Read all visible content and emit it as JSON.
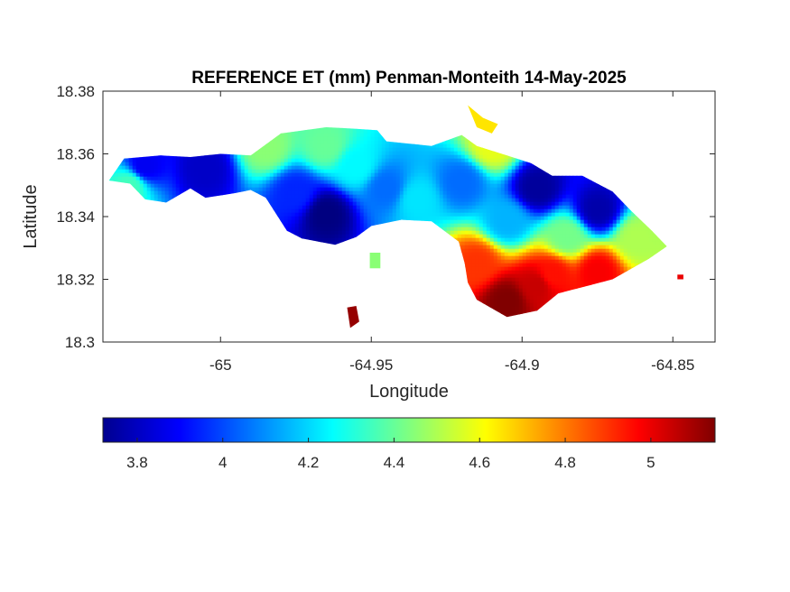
{
  "chart_data": {
    "type": "heatmap",
    "title": "REFERENCE ET (mm) Penman-Monteith 14-May-2025",
    "xlabel": "Longitude",
    "ylabel": "Latitude",
    "xlim": [
      -65.039,
      -64.836
    ],
    "ylim": [
      18.3,
      18.38
    ],
    "x_ticks": [
      -65,
      -64.95,
      -64.9,
      -64.85
    ],
    "x_tick_labels": [
      "-65",
      "-64.95",
      "-64.9",
      "-64.85"
    ],
    "y_ticks": [
      18.3,
      18.32,
      18.34,
      18.36,
      18.38
    ],
    "y_tick_labels": [
      "18.3",
      "18.32",
      "18.34",
      "18.36",
      "18.38"
    ],
    "colormap": "jet",
    "colorbar": {
      "position": "bottom",
      "range": [
        3.72,
        5.15
      ],
      "ticks": [
        3.8,
        4,
        4.2,
        4.4,
        4.6,
        4.8,
        5
      ],
      "tick_labels": [
        "3.8",
        "4",
        "4.2",
        "4.4",
        "4.6",
        "4.8",
        "5"
      ]
    },
    "grid": false,
    "region": {
      "outline": [
        [
          -65.037,
          18.3515
        ],
        [
          -65.032,
          18.3585
        ],
        [
          -65.02,
          18.3595
        ],
        [
          -65.01,
          18.359
        ],
        [
          -65.0,
          18.36
        ],
        [
          -64.99,
          18.3595
        ],
        [
          -64.98,
          18.3665
        ],
        [
          -64.965,
          18.3685
        ],
        [
          -64.955,
          18.368
        ],
        [
          -64.948,
          18.3675
        ],
        [
          -64.945,
          18.364
        ],
        [
          -64.93,
          18.3625
        ],
        [
          -64.92,
          18.366
        ],
        [
          -64.915,
          18.3625
        ],
        [
          -64.905,
          18.3595
        ],
        [
          -64.897,
          18.357
        ],
        [
          -64.89,
          18.353
        ],
        [
          -64.88,
          18.353
        ],
        [
          -64.87,
          18.348
        ],
        [
          -64.864,
          18.342
        ],
        [
          -64.857,
          18.3355
        ],
        [
          -64.852,
          18.3305
        ],
        [
          -64.858,
          18.3265
        ],
        [
          -64.87,
          18.32
        ],
        [
          -64.88,
          18.3175
        ],
        [
          -64.888,
          18.3155
        ],
        [
          -64.895,
          18.31
        ],
        [
          -64.905,
          18.308
        ],
        [
          -64.915,
          18.3135
        ],
        [
          -64.918,
          18.319
        ],
        [
          -64.919,
          18.325
        ],
        [
          -64.921,
          18.332
        ],
        [
          -64.93,
          18.3385
        ],
        [
          -64.94,
          18.339
        ],
        [
          -64.95,
          18.337
        ],
        [
          -64.955,
          18.3335
        ],
        [
          -64.962,
          18.331
        ],
        [
          -64.973,
          18.333
        ],
        [
          -64.978,
          18.3355
        ],
        [
          -64.985,
          18.346
        ],
        [
          -64.99,
          18.3485
        ],
        [
          -64.995,
          18.3475
        ],
        [
          -65.005,
          18.346
        ],
        [
          -65.01,
          18.349
        ],
        [
          -65.018,
          18.3445
        ],
        [
          -65.025,
          18.3455
        ],
        [
          -65.03,
          18.3505
        ]
      ],
      "islets": [
        {
          "outline": [
            [
              -64.918,
              18.3755
            ],
            [
              -64.913,
              18.3715
            ],
            [
              -64.908,
              18.3695
            ],
            [
              -64.91,
              18.3665
            ],
            [
              -64.915,
              18.3685
            ]
          ],
          "et": 4.65
        },
        {
          "outline": [
            [
              -64.958,
              18.311
            ],
            [
              -64.955,
              18.3115
            ],
            [
              -64.954,
              18.3065
            ],
            [
              -64.957,
              18.3045
            ]
          ],
          "et": 5.12
        },
        {
          "outline": [
            [
              -64.9505,
              18.3285
            ],
            [
              -64.947,
              18.3285
            ],
            [
              -64.947,
              18.3235
            ],
            [
              -64.9505,
              18.3235
            ]
          ],
          "et": 4.45
        },
        {
          "outline": [
            [
              -64.8485,
              18.3215
            ],
            [
              -64.8465,
              18.3215
            ],
            [
              -64.8465,
              18.32
            ],
            [
              -64.8485,
              18.32
            ]
          ],
          "et": 5.0
        }
      ]
    },
    "field": {
      "description_points": [
        {
          "lon": -65.025,
          "lat": 18.356,
          "et": 3.88
        },
        {
          "lon": -65.03,
          "lat": 18.35,
          "et": 4.35
        },
        {
          "lon": -65.005,
          "lat": 18.3555,
          "et": 3.82
        },
        {
          "lon": -64.985,
          "lat": 18.362,
          "et": 4.45
        },
        {
          "lon": -64.965,
          "lat": 18.3625,
          "et": 4.4
        },
        {
          "lon": -64.955,
          "lat": 18.356,
          "et": 4.25
        },
        {
          "lon": -64.965,
          "lat": 18.341,
          "et": 3.72
        },
        {
          "lon": -64.975,
          "lat": 18.3475,
          "et": 3.95
        },
        {
          "lon": -64.945,
          "lat": 18.349,
          "et": 4.05
        },
        {
          "lon": -64.935,
          "lat": 18.3455,
          "et": 4.22
        },
        {
          "lon": -64.92,
          "lat": 18.351,
          "et": 4.05
        },
        {
          "lon": -64.91,
          "lat": 18.3625,
          "et": 4.58
        },
        {
          "lon": -64.895,
          "lat": 18.349,
          "et": 3.76
        },
        {
          "lon": -64.875,
          "lat": 18.342,
          "et": 3.78
        },
        {
          "lon": -64.905,
          "lat": 18.3385,
          "et": 4.15
        },
        {
          "lon": -64.885,
          "lat": 18.3335,
          "et": 4.42
        },
        {
          "lon": -64.862,
          "lat": 18.333,
          "et": 4.5
        },
        {
          "lon": -64.915,
          "lat": 18.325,
          "et": 4.9
        },
        {
          "lon": -64.89,
          "lat": 18.3215,
          "et": 4.95
        },
        {
          "lon": -64.875,
          "lat": 18.3225,
          "et": 4.98
        },
        {
          "lon": -64.905,
          "lat": 18.313,
          "et": 5.15
        },
        {
          "lon": -64.895,
          "lat": 18.318,
          "et": 5.05
        }
      ]
    }
  }
}
